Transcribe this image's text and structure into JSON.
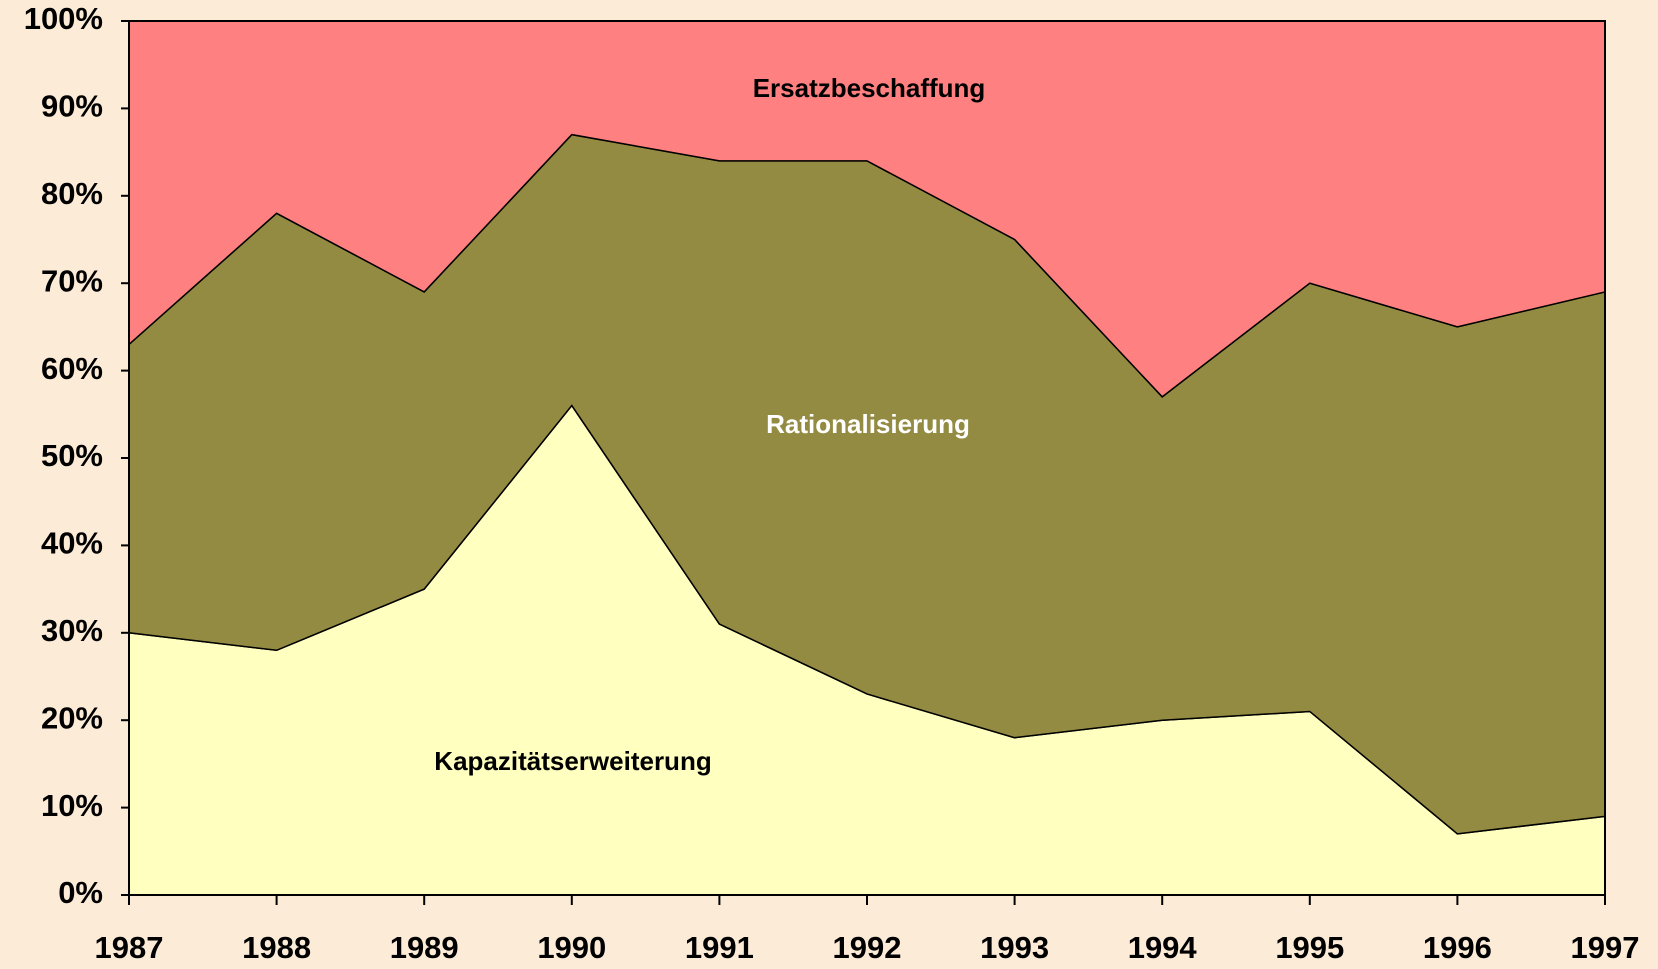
{
  "chart_data": {
    "type": "stacked_area",
    "x": [
      1987,
      1988,
      1989,
      1990,
      1991,
      1992,
      1993,
      1994,
      1995,
      1996,
      1997
    ],
    "xlim": [
      1987,
      1997
    ],
    "xticks": [
      1987,
      1988,
      1989,
      1990,
      1991,
      1992,
      1993,
      1994,
      1995,
      1996,
      1997
    ],
    "ylim": [
      0,
      100
    ],
    "yticks": [
      {
        "value": 0,
        "label": "0%"
      },
      {
        "value": 10,
        "label": "10%"
      },
      {
        "value": 20,
        "label": "20%"
      },
      {
        "value": 30,
        "label": "30%"
      },
      {
        "value": 40,
        "label": "40%"
      },
      {
        "value": 50,
        "label": "50%"
      },
      {
        "value": 60,
        "label": "60%"
      },
      {
        "value": 70,
        "label": "70%"
      },
      {
        "value": 80,
        "label": "80%"
      },
      {
        "value": 90,
        "label": "90%"
      },
      {
        "value": 100,
        "label": "100%"
      }
    ],
    "series": [
      {
        "name": "Kapazitätserweiterung",
        "color": "#ffffc0",
        "values": [
          30,
          28,
          35,
          56,
          31,
          23,
          18,
          20,
          21,
          7,
          9
        ]
      },
      {
        "name": "Rationalisierung",
        "color": "#948b42",
        "values": [
          33,
          50,
          34,
          31,
          53,
          61,
          57,
          37,
          49,
          58,
          60
        ]
      },
      {
        "name": "Ersatzbeschaffung",
        "color": "#ff8080",
        "values": [
          37,
          22,
          31,
          13,
          16,
          16,
          25,
          43,
          30,
          35,
          31
        ]
      }
    ]
  }
}
